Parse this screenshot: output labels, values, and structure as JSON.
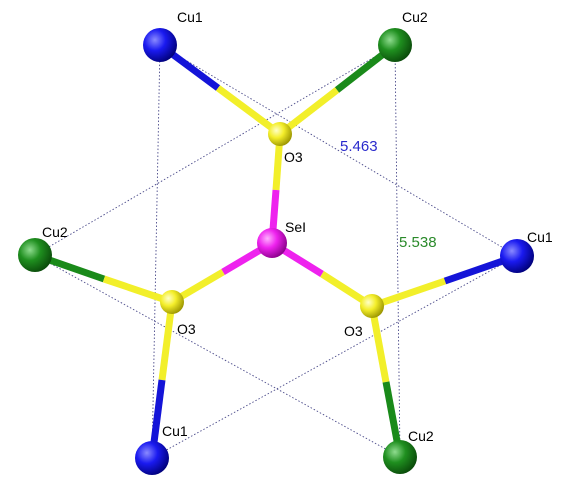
{
  "labels": {
    "cu1_top": "Cu1",
    "cu2_top": "Cu2",
    "o3_top": "O3",
    "se": "SeI",
    "cu2_left": "Cu2",
    "cu1_right": "Cu1",
    "o3_left": "O3",
    "o3_right": "O3",
    "cu1_bottom": "Cu1",
    "cu2_bottom": "Cu2"
  },
  "distances": {
    "cu1_triangle": "5.463",
    "cu2_triangle": "5.538"
  },
  "colors": {
    "cu1_atom": "#1010e0",
    "cu2_atom": "#1a8a1a",
    "oxygen_atom": "#f2ef2a",
    "selenium_atom": "#ee22ee",
    "cu1_distance_text": "#2a2acc",
    "cu2_distance_text": "#2a8a2a",
    "dotted_line": "#4a4a8a"
  }
}
